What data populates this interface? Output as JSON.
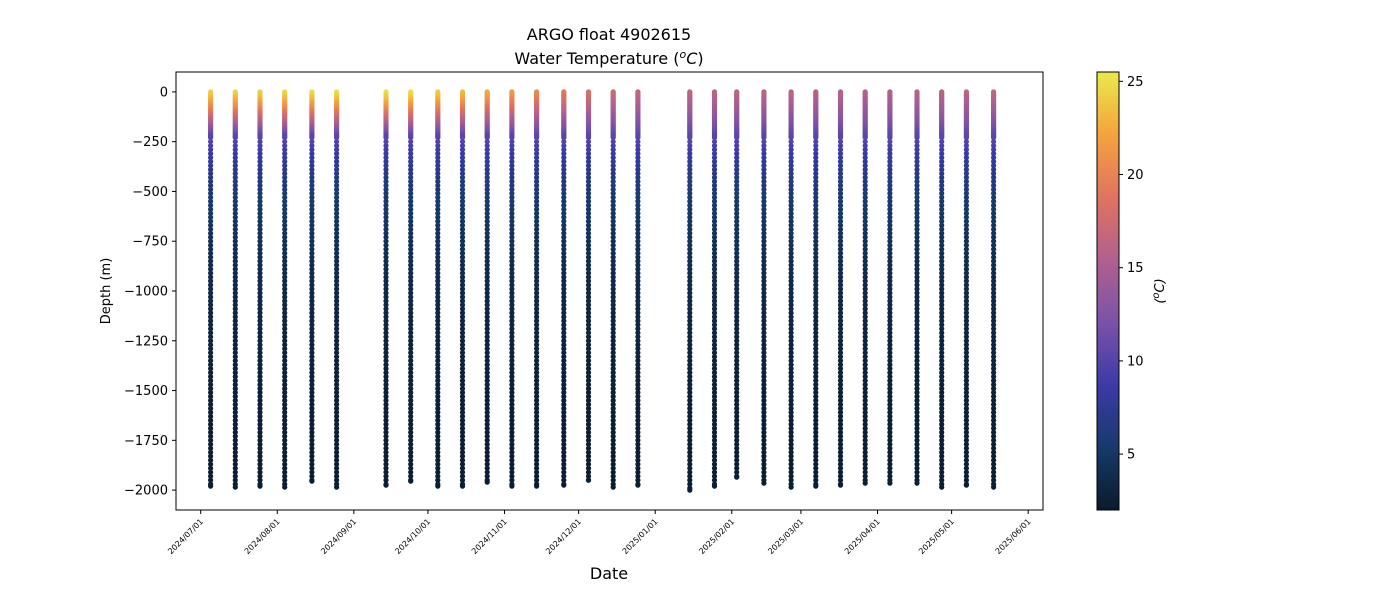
{
  "chart_data": {
    "type": "scatter",
    "title": "ARGO float 4902615",
    "subtitle": "Water Temperature (",
    "subtitle_italic": "oC",
    "subtitle_close": ")",
    "xlabel": "Date",
    "ylabel": "Depth (m)",
    "colorbar_label": "(oC)",
    "xlim": [
      "2024-06-21",
      "2025-06-07"
    ],
    "ylim": [
      -2100,
      100
    ],
    "y_ticks": [
      0,
      -250,
      -500,
      -750,
      -1000,
      -1250,
      -1500,
      -1750,
      -2000
    ],
    "y_tick_labels": [
      "0",
      "−250",
      "−500",
      "−750",
      "−1000",
      "−1250",
      "−1500",
      "−1750",
      "−2000"
    ],
    "x_ticks": [
      "2024-07-01",
      "2024-08-01",
      "2024-09-01",
      "2024-10-01",
      "2024-11-01",
      "2024-12-01",
      "2025-01-01",
      "2025-02-01",
      "2025-03-01",
      "2025-04-01",
      "2025-05-01",
      "2025-06-01"
    ],
    "x_tick_labels": [
      "2024/07/01",
      "2024/08/01",
      "2024/09/01",
      "2024/10/01",
      "2024/11/01",
      "2024/12/01",
      "2025/01/01",
      "2025/02/01",
      "2025/03/01",
      "2025/04/01",
      "2025/05/01",
      "2025/06/01"
    ],
    "colorbar_range": [
      2,
      25.5
    ],
    "colorbar_ticks": [
      5,
      10,
      15,
      20,
      25
    ],
    "colormap_stops": [
      "#0b1a2c",
      "#173a6b",
      "#3d3aa8",
      "#7b52a8",
      "#b0608f",
      "#e07360",
      "#f4a33e",
      "#ebe94a"
    ],
    "profiles": [
      {
        "date": "2024-07-05",
        "surface_temp": 24.5,
        "max_depth": -1980
      },
      {
        "date": "2024-07-15",
        "surface_temp": 24.6,
        "max_depth": -1985
      },
      {
        "date": "2024-07-25",
        "surface_temp": 24.6,
        "max_depth": -1980
      },
      {
        "date": "2024-08-04",
        "surface_temp": 24.8,
        "max_depth": -1985
      },
      {
        "date": "2024-08-15",
        "surface_temp": 25.0,
        "max_depth": -1955
      },
      {
        "date": "2024-08-25",
        "surface_temp": 25.2,
        "max_depth": -1985
      },
      {
        "date": "2024-09-14",
        "surface_temp": 25.3,
        "max_depth": -1975
      },
      {
        "date": "2024-09-24",
        "surface_temp": 25.1,
        "max_depth": -1955
      },
      {
        "date": "2024-10-05",
        "surface_temp": 24.4,
        "max_depth": -1980
      },
      {
        "date": "2024-10-15",
        "surface_temp": 23.6,
        "max_depth": -1980
      },
      {
        "date": "2024-10-25",
        "surface_temp": 22.6,
        "max_depth": -1960
      },
      {
        "date": "2024-11-04",
        "surface_temp": 21.7,
        "max_depth": -1980
      },
      {
        "date": "2024-11-14",
        "surface_temp": 20.5,
        "max_depth": -1980
      },
      {
        "date": "2024-11-25",
        "surface_temp": 19.2,
        "max_depth": -1975
      },
      {
        "date": "2024-12-05",
        "surface_temp": 18.3,
        "max_depth": -1950
      },
      {
        "date": "2024-12-15",
        "surface_temp": 17.4,
        "max_depth": -1985
      },
      {
        "date": "2024-12-25",
        "surface_temp": 16.8,
        "max_depth": -1975
      },
      {
        "date": "2025-01-15",
        "surface_temp": 16.5,
        "max_depth": -2000
      },
      {
        "date": "2025-01-25",
        "surface_temp": 16.3,
        "max_depth": -1980
      },
      {
        "date": "2025-02-03",
        "surface_temp": 16.2,
        "max_depth": -1935
      },
      {
        "date": "2025-02-14",
        "surface_temp": 16.2,
        "max_depth": -1965
      },
      {
        "date": "2025-02-25",
        "surface_temp": 16.2,
        "max_depth": -1985
      },
      {
        "date": "2025-03-07",
        "surface_temp": 16.1,
        "max_depth": -1980
      },
      {
        "date": "2025-03-17",
        "surface_temp": 16.0,
        "max_depth": -1975
      },
      {
        "date": "2025-03-27",
        "surface_temp": 15.8,
        "max_depth": -1965
      },
      {
        "date": "2025-04-06",
        "surface_temp": 15.7,
        "max_depth": -1965
      },
      {
        "date": "2025-04-17",
        "surface_temp": 16.0,
        "max_depth": -1965
      },
      {
        "date": "2025-04-27",
        "surface_temp": 16.1,
        "max_depth": -1985
      },
      {
        "date": "2025-05-07",
        "surface_temp": 16.3,
        "max_depth": -1975
      },
      {
        "date": "2025-05-18",
        "surface_temp": 16.5,
        "max_depth": -1985
      }
    ]
  }
}
